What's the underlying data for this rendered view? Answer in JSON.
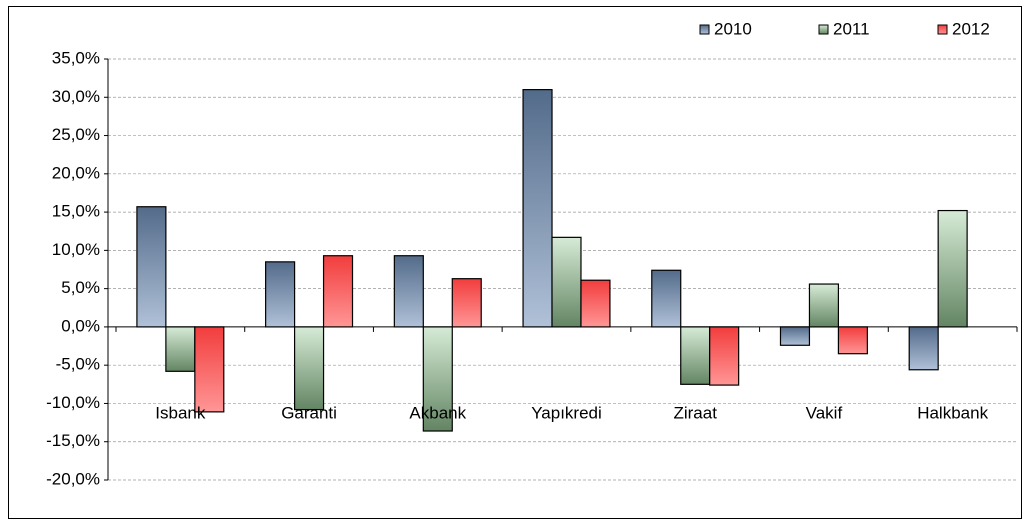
{
  "chart_data": {
    "type": "bar",
    "categories": [
      "Isbank",
      "Garanti",
      "Akbank",
      "Yapıkredi",
      "Ziraat",
      "Vakif",
      "Halkbank"
    ],
    "series": [
      {
        "name": "2010",
        "color": "#6f8fb8",
        "values": [
          15.7,
          8.5,
          9.3,
          31.0,
          7.4,
          -2.4,
          -5.6
        ]
      },
      {
        "name": "2011",
        "color": "#99cc99",
        "values": [
          -5.8,
          -10.8,
          -13.6,
          11.7,
          -7.5,
          5.6,
          15.2
        ]
      },
      {
        "name": "2012",
        "color": "#ff4040",
        "values": [
          -11.1,
          9.3,
          6.3,
          6.1,
          -7.6,
          -3.5,
          null
        ]
      }
    ],
    "ylim": [
      -20,
      35
    ],
    "yticks": [
      {
        "value": -20,
        "label": "-20,0%"
      },
      {
        "value": -15,
        "label": "-15,0%"
      },
      {
        "value": -10,
        "label": "-10,0%"
      },
      {
        "value": -5,
        "label": "-5,0%"
      },
      {
        "value": 0,
        "label": "0,0%"
      },
      {
        "value": 5,
        "label": "5,0%"
      },
      {
        "value": 10,
        "label": "10,0%"
      },
      {
        "value": 15,
        "label": "15,0%"
      },
      {
        "value": 20,
        "label": "20,0%"
      },
      {
        "value": 25,
        "label": "25,0%"
      },
      {
        "value": 30,
        "label": "30,0%"
      },
      {
        "value": 35,
        "label": "35,0%"
      }
    ],
    "grid": true,
    "legend": "top-right"
  }
}
